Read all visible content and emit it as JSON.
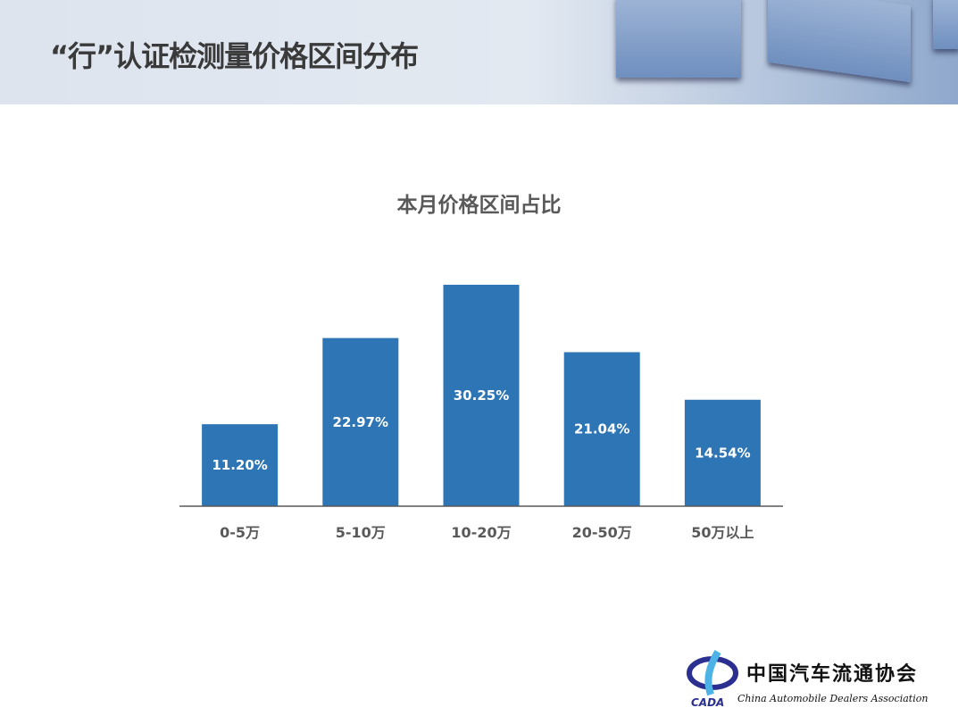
{
  "slide": {
    "title": "“行”认证检测量价格区间分布"
  },
  "logo": {
    "name_cn": "中国汽车流通协会",
    "name_en": "China Automobile Dealers Association",
    "abbr": "CADA"
  },
  "chart_data": {
    "type": "bar",
    "title": "本月价格区间占比",
    "categories": [
      "0-5万",
      "5-10万",
      "10-20万",
      "20-50万",
      "50万以上"
    ],
    "values": [
      11.2,
      22.97,
      30.25,
      21.04,
      14.54
    ],
    "labels": [
      "11.20%",
      "22.97%",
      "30.25%",
      "21.04%",
      "14.54%"
    ],
    "unit": "%",
    "ylim": [
      0,
      35
    ],
    "grid": false,
    "bar_color": "#2e75b6"
  }
}
